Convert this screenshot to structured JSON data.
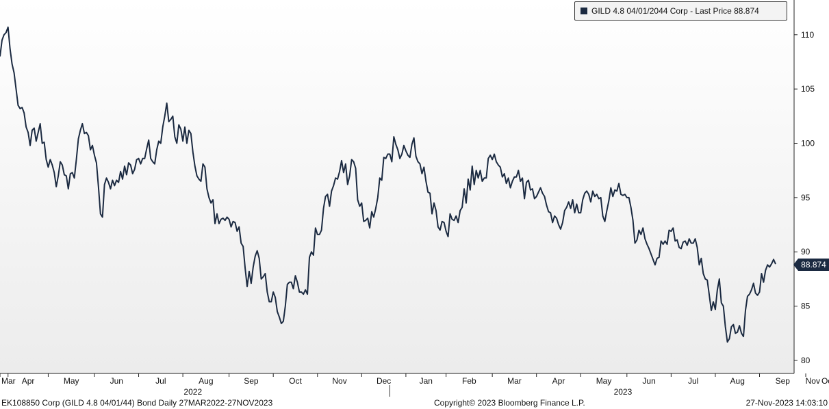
{
  "legend": {
    "label": "GILD 4.8 04/01/2044 Corp - Last Price 88.874",
    "color": "#1b2a41"
  },
  "last_price_label": "88.874",
  "footer": {
    "left": "EK108850 Corp (GILD 4.8 04/01/44) Bond  Daily 27MAR2022-27NOV2023",
    "center": "Copyright© 2023 Bloomberg Finance L.P.",
    "right": "27-Nov-2023 14:03:10"
  },
  "chart_data": {
    "type": "line",
    "title": "",
    "xlabel": "",
    "ylabel": "",
    "ylim": [
      78.8,
      113.2
    ],
    "yticks": [
      80,
      85,
      90,
      95,
      100,
      105,
      110
    ],
    "grid": false,
    "legend_position": "top-right",
    "month_ticks": [
      {
        "label": "Mar",
        "idx": 0
      },
      {
        "label": "Apr",
        "idx": 4
      },
      {
        "label": "May",
        "idx": 24
      },
      {
        "label": "Jun",
        "idx": 47
      },
      {
        "label": "Jul",
        "idx": 69
      },
      {
        "label": "Aug",
        "idx": 91
      },
      {
        "label": "Sep",
        "idx": 114
      },
      {
        "label": "Oct",
        "idx": 136
      },
      {
        "label": "Nov",
        "idx": 158
      },
      {
        "label": "Dec",
        "idx": 180
      },
      {
        "label": "Jan",
        "idx": 202
      },
      {
        "label": "Feb",
        "idx": 222
      },
      {
        "label": "Mar",
        "idx": 245
      },
      {
        "label": "Apr",
        "idx": 267
      },
      {
        "label": "May",
        "idx": 289
      },
      {
        "label": "Jun",
        "idx": 312
      },
      {
        "label": "Jul",
        "idx": 334
      },
      {
        "label": "Aug",
        "idx": 356
      },
      {
        "label": "Sep",
        "idx": 378
      },
      {
        "label": "Oct",
        "idx": 401
      },
      {
        "label": "Nov",
        "idx": 423
      }
    ],
    "year_labels": [
      {
        "label": "2022",
        "idx": 96
      },
      {
        "label": "2023",
        "idx": 310
      }
    ],
    "year_divider_idx": 194,
    "series": [
      {
        "name": "GILD 4.8 04/01/2044 Corp - Last Price",
        "color": "#1b2a41",
        "values": [
          108.0,
          109.5,
          110.0,
          110.2,
          110.7,
          108.7,
          107.3,
          106.5,
          105.0,
          103.5,
          103.2,
          103.3,
          102.8,
          101.5,
          101.0,
          99.8,
          101.2,
          101.4,
          100.2,
          101.0,
          101.8,
          100.0,
          100.1,
          98.5,
          97.8,
          98.5,
          98.0,
          97.3,
          96.0,
          97.0,
          98.3,
          98.0,
          97.1,
          97.0,
          95.8,
          97.2,
          97.3,
          96.8,
          98.5,
          100.4,
          101.2,
          101.8,
          100.9,
          101.0,
          100.7,
          99.4,
          99.8,
          98.9,
          98.2,
          96.0,
          93.5,
          93.2,
          96.2,
          96.8,
          96.4,
          95.8,
          96.6,
          96.1,
          96.6,
          96.4,
          97.4,
          96.7,
          97.9,
          97.1,
          98.2,
          98.0,
          97.2,
          97.6,
          98.5,
          98.6,
          98.1,
          98.6,
          98.6,
          99.5,
          100.3,
          98.6,
          98.3,
          98.1,
          99.4,
          100.2,
          100.0,
          101.5,
          102.5,
          103.7,
          102.0,
          102.2,
          102.5,
          100.6,
          100.0,
          101.7,
          101.3,
          100.2,
          101.5,
          100.0,
          101.2,
          100.9,
          99.2,
          97.9,
          97.0,
          96.7,
          96.5,
          98.1,
          97.8,
          95.8,
          95.0,
          94.5,
          94.8,
          92.6,
          93.5,
          92.6,
          93.0,
          93.1,
          92.9,
          93.2,
          93.0,
          92.3,
          92.8,
          92.7,
          91.9,
          92.3,
          90.8,
          90.5,
          88.5,
          86.8,
          88.2,
          87.1,
          88.6,
          89.6,
          90.1,
          89.4,
          87.5,
          87.7,
          88.0,
          86.3,
          85.4,
          85.4,
          86.3,
          85.8,
          84.5,
          84.0,
          83.4,
          83.6,
          85.0,
          87.0,
          87.2,
          87.2,
          86.6,
          87.8,
          87.2,
          86.3,
          86.3,
          86.1,
          86.5,
          86.1,
          89.5,
          90.0,
          89.7,
          92.2,
          91.6,
          91.6,
          92.0,
          94.0,
          95.1,
          95.3,
          94.2,
          95.6,
          96.1,
          96.8,
          96.7,
          97.4,
          98.4,
          97.3,
          98.1,
          96.2,
          97.0,
          98.5,
          98.3,
          97.7,
          94.8,
          94.2,
          94.5,
          92.8,
          92.9,
          93.1,
          92.2,
          93.7,
          93.2,
          94.0,
          95.0,
          96.8,
          96.6,
          98.7,
          98.6,
          99.0,
          99.0,
          98.3,
          100.6,
          99.9,
          99.4,
          98.6,
          99.0,
          99.8,
          99.3,
          98.9,
          98.7,
          99.9,
          100.5,
          98.8,
          98.3,
          98.1,
          97.2,
          97.8,
          96.5,
          95.5,
          95.4,
          93.5,
          94.5,
          93.8,
          92.3,
          92.0,
          92.8,
          92.7,
          91.9,
          91.4,
          93.5,
          93.0,
          92.9,
          93.3,
          92.7,
          93.8,
          94.1,
          95.8,
          94.5,
          96.7,
          95.7,
          97.9,
          96.2,
          97.5,
          96.8,
          97.5,
          96.5,
          96.8,
          96.8,
          98.6,
          98.9,
          98.5,
          99.0,
          98.3,
          98.0,
          97.8,
          96.9,
          97.2,
          96.3,
          96.8,
          95.9,
          96.5,
          96.9,
          96.9,
          97.5,
          96.5,
          96.8,
          94.9,
          96.4,
          96.6,
          95.7,
          95.8,
          94.9,
          95.1,
          95.5,
          95.9,
          95.4,
          95.1,
          94.3,
          93.7,
          93.6,
          92.7,
          93.3,
          93.1,
          92.5,
          92.1,
          92.7,
          93.8,
          94.1,
          94.6,
          94.0,
          94.8,
          93.6,
          94.4,
          93.6,
          93.6,
          94.8,
          95.4,
          95.6,
          95.3,
          94.6,
          95.6,
          95.1,
          95.3,
          94.9,
          95.0,
          93.3,
          92.8,
          93.8,
          94.7,
          95.9,
          95.1,
          95.7,
          95.6,
          96.3,
          95.3,
          95.2,
          95.3,
          95.0,
          95.0,
          94.1,
          92.9,
          90.8,
          91.1,
          92.0,
          91.6,
          92.2,
          91.2,
          90.7,
          90.3,
          89.8,
          89.3,
          88.8,
          89.4,
          89.5,
          91.0,
          90.7,
          91.0,
          90.7,
          92.0,
          91.9,
          92.2,
          91.0,
          91.1,
          90.4,
          90.3,
          90.9,
          91.0,
          90.6,
          91.2,
          90.8,
          90.8,
          91.2,
          90.4,
          88.8,
          89.4,
          88.0,
          87.5,
          87.4,
          86.0,
          84.6,
          85.4,
          84.7,
          86.5,
          87.5,
          85.3,
          85.0,
          83.1,
          81.7,
          82.0,
          83.1,
          83.3,
          82.5,
          82.6,
          83.2,
          82.5,
          82.2,
          84.6,
          85.9,
          86.1,
          86.5,
          87.1,
          86.2,
          86.0,
          86.3,
          88.0,
          87.2,
          88.3,
          88.8,
          88.6,
          88.9,
          89.3,
          88.874
        ]
      }
    ]
  }
}
